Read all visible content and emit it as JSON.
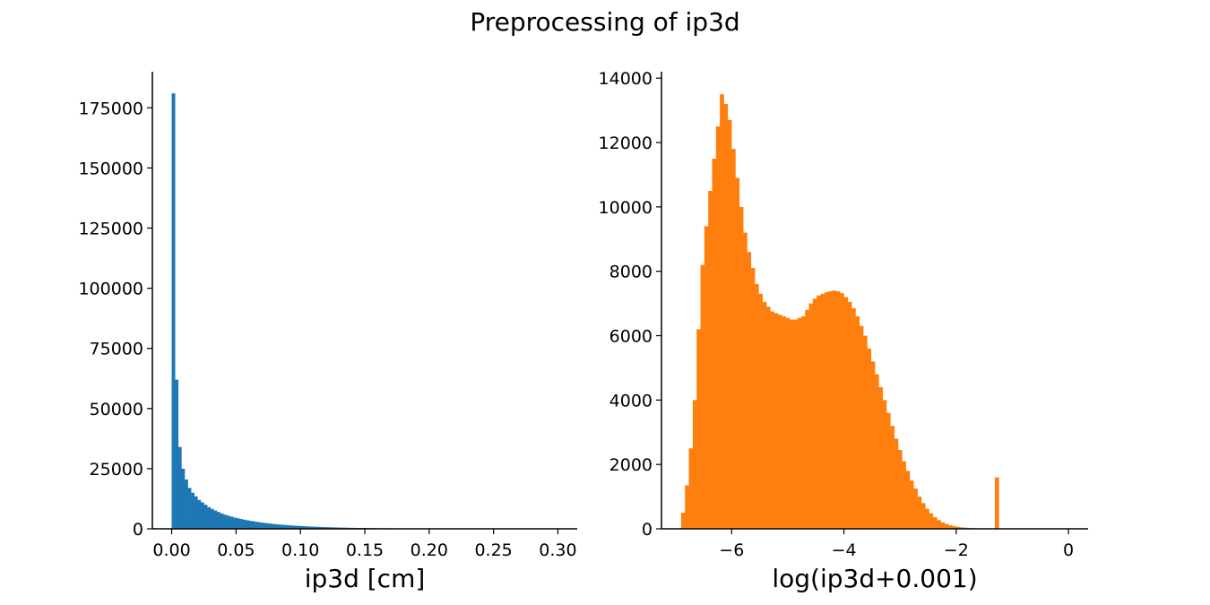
{
  "title": "Preprocessing of ip3d",
  "chart_data": [
    {
      "type": "bar",
      "name": "ip3d histogram",
      "color": "#1f77b4",
      "xlabel": "ip3d [cm]",
      "ylabel": "",
      "xlim": [
        -0.015,
        0.315
      ],
      "ylim": [
        0,
        190000
      ],
      "xticks": [
        0.0,
        0.05,
        0.1,
        0.15,
        0.2,
        0.25,
        0.3
      ],
      "xtick_labels": [
        "0.00",
        "0.05",
        "0.10",
        "0.15",
        "0.20",
        "0.25",
        "0.30"
      ],
      "yticks": [
        0,
        25000,
        50000,
        75000,
        100000,
        125000,
        150000,
        175000
      ],
      "ytick_labels": [
        "0",
        "25000",
        "50000",
        "75000",
        "100000",
        "125000",
        "150000",
        "175000"
      ],
      "bin_start": 0.0,
      "bin_width": 0.0025,
      "values": [
        181000,
        62000,
        34000,
        25000,
        20500,
        17000,
        15000,
        13500,
        12000,
        11000,
        10000,
        9000,
        8300,
        7600,
        7000,
        6400,
        5900,
        5500,
        5100,
        4700,
        4400,
        4100,
        3800,
        3550,
        3300,
        3100,
        2900,
        2700,
        2520,
        2350,
        2200,
        2050,
        1920,
        1800,
        1680,
        1570,
        1470,
        1380,
        1290,
        1210,
        1130,
        1060,
        990,
        930,
        870,
        815,
        765,
        718,
        673,
        632,
        593,
        556,
        522,
        490,
        460,
        432,
        405,
        380,
        357,
        335,
        315,
        296,
        278,
        261,
        245,
        230,
        216,
        203,
        191,
        180,
        169,
        159,
        150,
        141,
        133,
        125,
        118,
        111,
        105,
        99,
        93,
        88,
        83,
        78,
        74,
        70,
        66,
        62,
        58,
        55,
        52,
        49,
        46,
        43,
        41,
        38,
        36,
        34,
        32,
        30,
        28,
        27,
        25,
        24,
        22,
        21,
        20,
        19,
        18,
        17,
        16,
        15,
        14,
        13,
        12,
        11,
        11,
        10,
        10,
        9
      ],
      "grid": false
    },
    {
      "type": "bar",
      "name": "log histogram",
      "color": "#ff7f0e",
      "xlabel": "log(ip3d+0.001)",
      "ylabel": "",
      "xlim": [
        -7.25,
        0.35
      ],
      "ylim": [
        0,
        14200
      ],
      "xticks": [
        -6,
        -4,
        -2,
        0
      ],
      "xtick_labels": [
        "−6",
        "−4",
        "−2",
        "0"
      ],
      "yticks": [
        0,
        2000,
        4000,
        6000,
        8000,
        10000,
        12000,
        14000
      ],
      "ytick_labels": [
        "0",
        "2000",
        "4000",
        "6000",
        "8000",
        "10000",
        "12000",
        "14000"
      ],
      "bin_start": -6.9,
      "bin_width": 0.069,
      "values": [
        500,
        1350,
        2500,
        4000,
        6200,
        8200,
        9400,
        10500,
        11500,
        12500,
        13500,
        13200,
        12700,
        11800,
        10900,
        10000,
        9200,
        8600,
        8100,
        7600,
        7300,
        7050,
        6900,
        6750,
        6700,
        6650,
        6600,
        6550,
        6500,
        6500,
        6550,
        6600,
        6800,
        7000,
        7150,
        7250,
        7300,
        7350,
        7380,
        7400,
        7380,
        7320,
        7200,
        7050,
        6850,
        6600,
        6300,
        6000,
        5600,
        5200,
        4800,
        4400,
        4000,
        3600,
        3200,
        2800,
        2450,
        2100,
        1800,
        1500,
        1250,
        1000,
        800,
        620,
        480,
        360,
        270,
        200,
        150,
        110,
        80,
        60,
        45,
        35,
        25,
        18,
        12,
        8,
        5,
        3,
        2,
        1600
      ],
      "grid": false
    }
  ]
}
